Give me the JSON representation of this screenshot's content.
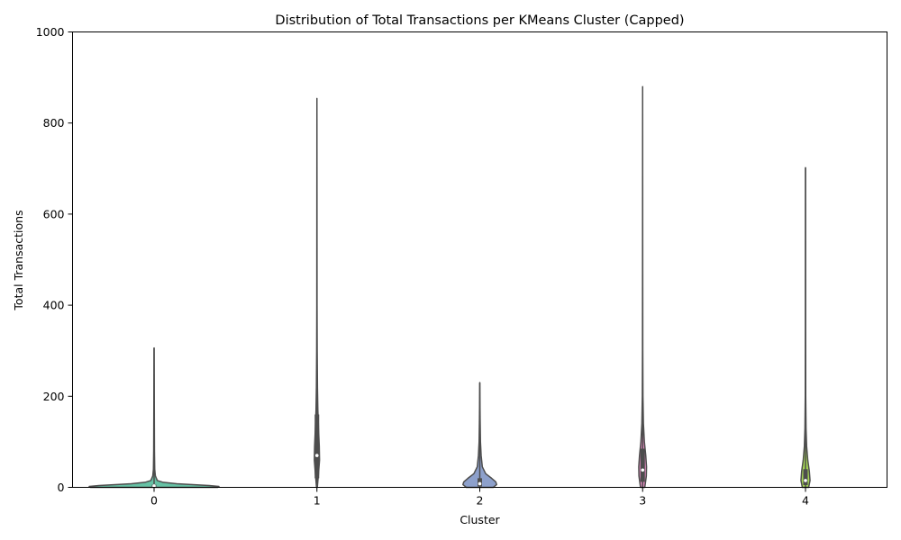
{
  "chart_data": {
    "type": "violin",
    "title": "Distribution of Total Transactions per KMeans Cluster (Capped)",
    "xlabel": "Cluster",
    "ylabel": "Total Transactions",
    "ylim": [
      0,
      1000
    ],
    "yticks": [
      0,
      200,
      400,
      600,
      800,
      1000
    ],
    "categories": [
      "0",
      "1",
      "2",
      "3",
      "4"
    ],
    "grid": false,
    "legend": "none",
    "series": [
      {
        "category": "0",
        "color": "#66c2a5",
        "min": 0,
        "max": 306,
        "q1": 1,
        "median": 3,
        "q3": 6,
        "profile": [
          [
            0,
            0.98
          ],
          [
            2,
            1.0
          ],
          [
            4,
            0.85
          ],
          [
            6,
            0.6
          ],
          [
            8,
            0.35
          ],
          [
            11,
            0.14
          ],
          [
            15,
            0.05
          ],
          [
            25,
            0.02
          ],
          [
            40,
            0.01
          ],
          [
            80,
            0.006
          ],
          [
            306,
            0
          ]
        ]
      },
      {
        "category": "1",
        "color": "#fc8d62",
        "min": 0,
        "max": 854,
        "q1": 20,
        "median": 70,
        "q3": 160,
        "profile": [
          [
            0,
            0.15
          ],
          [
            30,
            0.6
          ],
          [
            60,
            1.0
          ],
          [
            90,
            0.9
          ],
          [
            130,
            0.6
          ],
          [
            170,
            0.35
          ],
          [
            220,
            0.2
          ],
          [
            300,
            0.1
          ],
          [
            400,
            0.05
          ],
          [
            600,
            0.03
          ],
          [
            854,
            0
          ]
        ]
      },
      {
        "category": "2",
        "color": "#8da0cb",
        "min": 0,
        "max": 230,
        "q1": 2,
        "median": 8,
        "q3": 20,
        "profile": [
          [
            0,
            0.8
          ],
          [
            6,
            1.0
          ],
          [
            12,
            0.95
          ],
          [
            20,
            0.7
          ],
          [
            30,
            0.35
          ],
          [
            45,
            0.15
          ],
          [
            70,
            0.08
          ],
          [
            100,
            0.04
          ],
          [
            150,
            0.02
          ],
          [
            230,
            0
          ]
        ]
      },
      {
        "category": "3",
        "color": "#e78ac3",
        "min": 0,
        "max": 880,
        "q1": 12,
        "median": 38,
        "q3": 85,
        "profile": [
          [
            0,
            0.55
          ],
          [
            25,
            0.95
          ],
          [
            45,
            1.0
          ],
          [
            70,
            0.8
          ],
          [
            100,
            0.45
          ],
          [
            140,
            0.2
          ],
          [
            200,
            0.08
          ],
          [
            300,
            0.04
          ],
          [
            500,
            0.02
          ],
          [
            880,
            0
          ]
        ]
      },
      {
        "category": "4",
        "color": "#a6d854",
        "min": 0,
        "max": 702,
        "q1": 5,
        "median": 15,
        "q3": 40,
        "profile": [
          [
            0,
            0.7
          ],
          [
            15,
            1.0
          ],
          [
            35,
            0.85
          ],
          [
            60,
            0.5
          ],
          [
            90,
            0.25
          ],
          [
            130,
            0.12
          ],
          [
            200,
            0.05
          ],
          [
            350,
            0.02
          ],
          [
            702,
            0
          ]
        ]
      }
    ]
  }
}
